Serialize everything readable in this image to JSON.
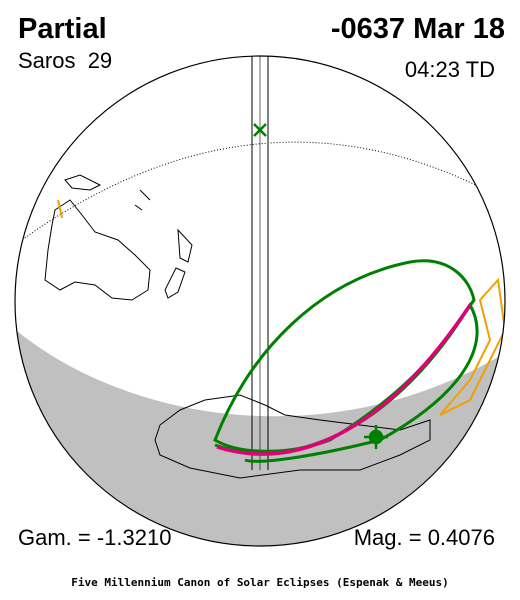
{
  "header": {
    "type": "Partial",
    "saros": "Saros  29",
    "date": "-0637 Mar 18",
    "time": "04:23 TD"
  },
  "footer": {
    "gamma": "Gam. = -1.3210",
    "magnitude": "Mag. = 0.4076",
    "credit": "Five Millennium Canon of Solar Eclipses (Espenak & Meeus)"
  }
}
